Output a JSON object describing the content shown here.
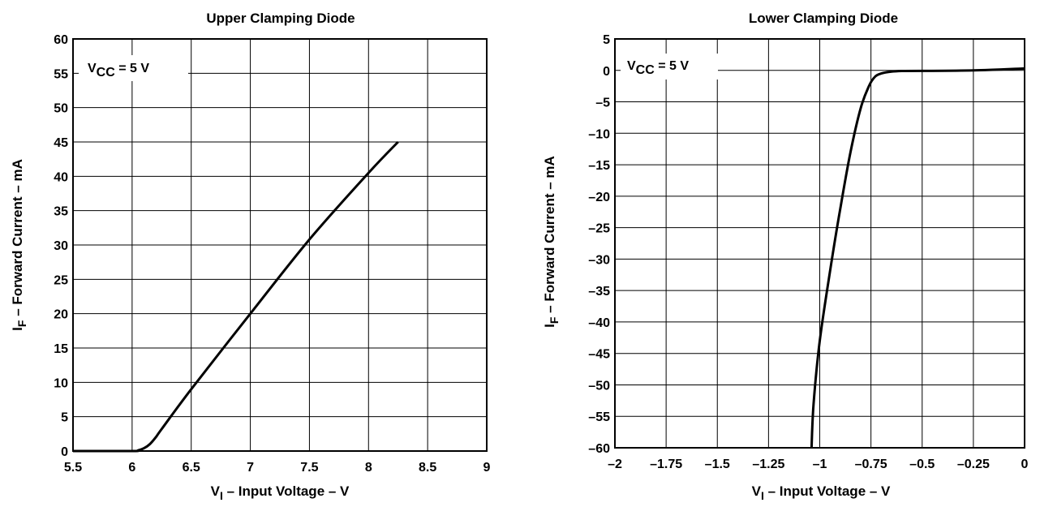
{
  "chart_data": [
    {
      "type": "line",
      "title": "Upper Clamping Diode",
      "xlabel": {
        "main": "V",
        "sub": "I",
        "rest": " – Input Voltage – V"
      },
      "ylabel": {
        "main": "I",
        "sub": "F",
        "rest": " – Forward Current – mA"
      },
      "annotation": {
        "main": "V",
        "sub": "CC",
        "rest": " = 5 V"
      },
      "xlim": [
        5.5,
        9
      ],
      "ylim": [
        0,
        60
      ],
      "xticks": [
        5.5,
        6,
        6.5,
        7,
        7.5,
        8,
        8.5,
        9
      ],
      "xtick_labels": [
        "5.5",
        "6",
        "6.5",
        "7",
        "7.5",
        "8",
        "8.5",
        "9"
      ],
      "yticks": [
        0,
        5,
        10,
        15,
        20,
        25,
        30,
        35,
        40,
        45,
        50,
        55,
        60
      ],
      "ytick_labels": [
        "0",
        "5",
        "10",
        "15",
        "20",
        "25",
        "30",
        "35",
        "40",
        "45",
        "50",
        "55",
        "60"
      ],
      "grid": true,
      "series": [
        {
          "x": [
            5.5,
            6.0,
            6.05,
            6.1,
            6.15,
            6.2,
            6.25,
            6.5,
            7.0,
            7.5,
            8.0,
            8.25
          ],
          "y": [
            0,
            0,
            0.1,
            0.4,
            1.0,
            2.0,
            3.2,
            9.0,
            20.0,
            30.8,
            40.5,
            45.0
          ]
        }
      ]
    },
    {
      "type": "line",
      "title": "Lower Clamping Diode",
      "xlabel": {
        "main": "V",
        "sub": "I",
        "rest": " – Input Voltage – V"
      },
      "ylabel": {
        "main": "I",
        "sub": "F",
        "rest": " – Forward Current – mA"
      },
      "annotation": {
        "main": "V",
        "sub": "CC",
        "rest": " = 5 V"
      },
      "xlim": [
        -2,
        0
      ],
      "ylim": [
        -60,
        5
      ],
      "xticks": [
        -2,
        -1.75,
        -1.5,
        -1.25,
        -1,
        -0.75,
        -0.5,
        -0.25,
        0
      ],
      "xtick_labels": [
        "–2",
        "–1.75",
        "–1.5",
        "–1.25",
        "–1",
        "–0.75",
        "–0.5",
        "–0.25",
        "0"
      ],
      "yticks": [
        5,
        0,
        -5,
        -10,
        -15,
        -20,
        -25,
        -30,
        -35,
        -40,
        -45,
        -50,
        -55,
        -60
      ],
      "ytick_labels": [
        "5",
        "0",
        "–5",
        "–10",
        "–15",
        "–20",
        "–25",
        "–30",
        "–35",
        "–40",
        "–45",
        "–50",
        "–55",
        "–60"
      ],
      "grid": true,
      "series": [
        {
          "x": [
            -1.04,
            -1.03,
            -1.0,
            -0.95,
            -0.9,
            -0.85,
            -0.8,
            -0.76,
            -0.73,
            -0.7,
            -0.65,
            -0.6,
            -0.5,
            -0.25,
            0
          ],
          "y": [
            -60,
            -53,
            -43,
            -32,
            -22,
            -13,
            -6,
            -2.5,
            -1,
            -0.5,
            -0.2,
            -0.1,
            -0.08,
            0,
            0.3
          ]
        }
      ]
    }
  ]
}
